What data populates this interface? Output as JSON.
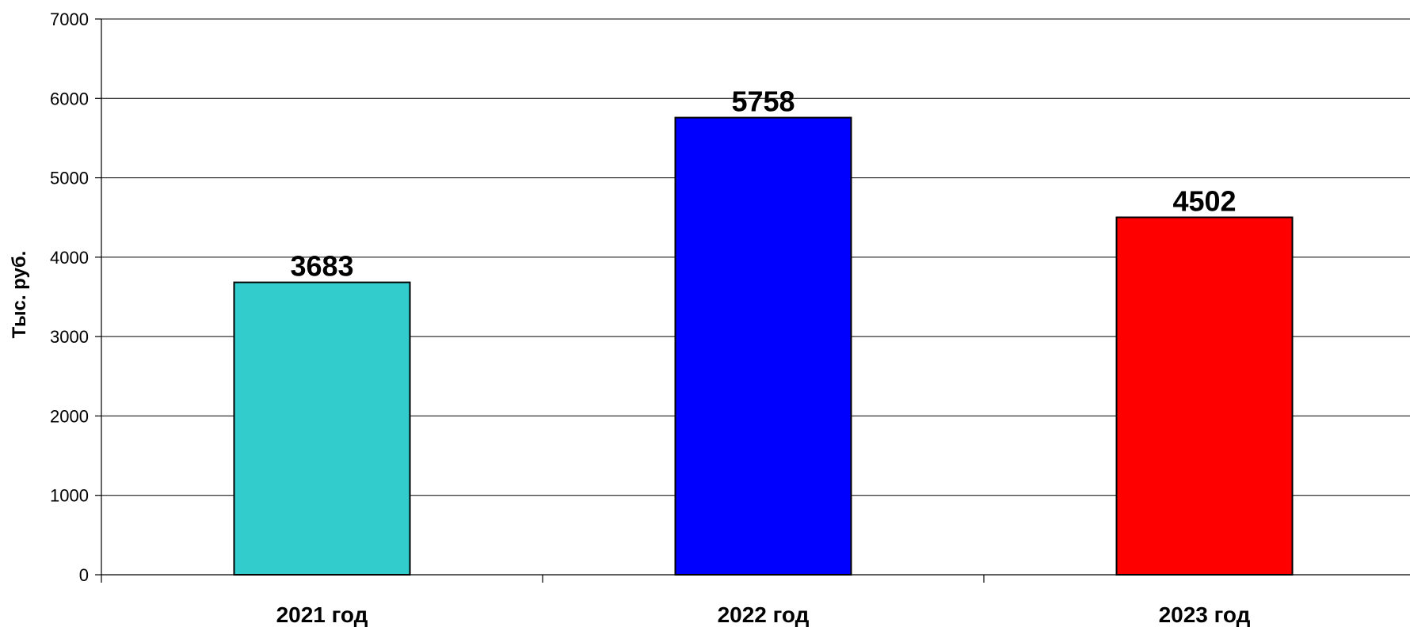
{
  "chart_data": {
    "type": "bar",
    "title": "",
    "xlabel": "",
    "ylabel": "Тыс. руб.",
    "ylim": [
      0,
      7000
    ],
    "y_ticks": [
      0,
      1000,
      2000,
      3000,
      4000,
      5000,
      6000,
      7000
    ],
    "grid": true,
    "legend": "none",
    "categories": [
      "2021 год",
      "2022 год",
      "2023 год"
    ],
    "values": [
      3683,
      5758,
      4502
    ],
    "data_labels": [
      "3683",
      "5758",
      "4502"
    ],
    "colors": [
      "#33CCCC",
      "#0000FF",
      "#FF0000"
    ]
  }
}
